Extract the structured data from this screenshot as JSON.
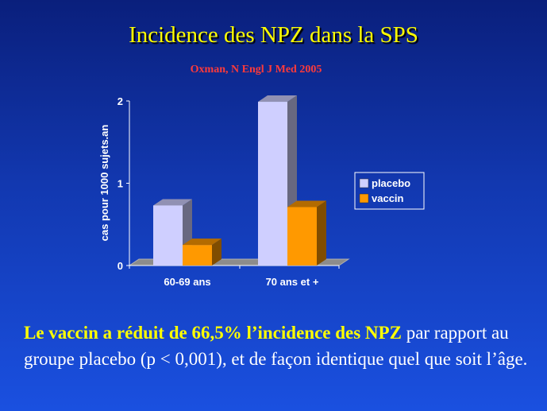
{
  "slide": {
    "title": "Incidence des NPZ dans la SPS",
    "citation": "Oxman, N Engl J Med 2005",
    "conclusion_highlight": "Le vaccin a réduit de 66,5% l’incidence des NPZ",
    "conclusion_rest": " par rapport au groupe placebo (p < 0,001), et de façon identique quel que soit l’âge."
  },
  "chart_data": {
    "type": "bar",
    "categories": [
      "60-69 ans",
      "70 ans et +"
    ],
    "series": [
      {
        "name": "placebo",
        "values": [
          0.73,
          1.99
        ],
        "color": "#cfcfff"
      },
      {
        "name": "vaccin",
        "values": [
          0.25,
          0.71
        ],
        "color": "#ff9900"
      }
    ],
    "title": "",
    "xlabel": "",
    "ylabel": "cas pour 1000 sujets.an",
    "ylim": [
      0,
      2
    ],
    "yticks": [
      0,
      1,
      2
    ],
    "grid": false,
    "legend_position": "right",
    "style": "3d"
  }
}
